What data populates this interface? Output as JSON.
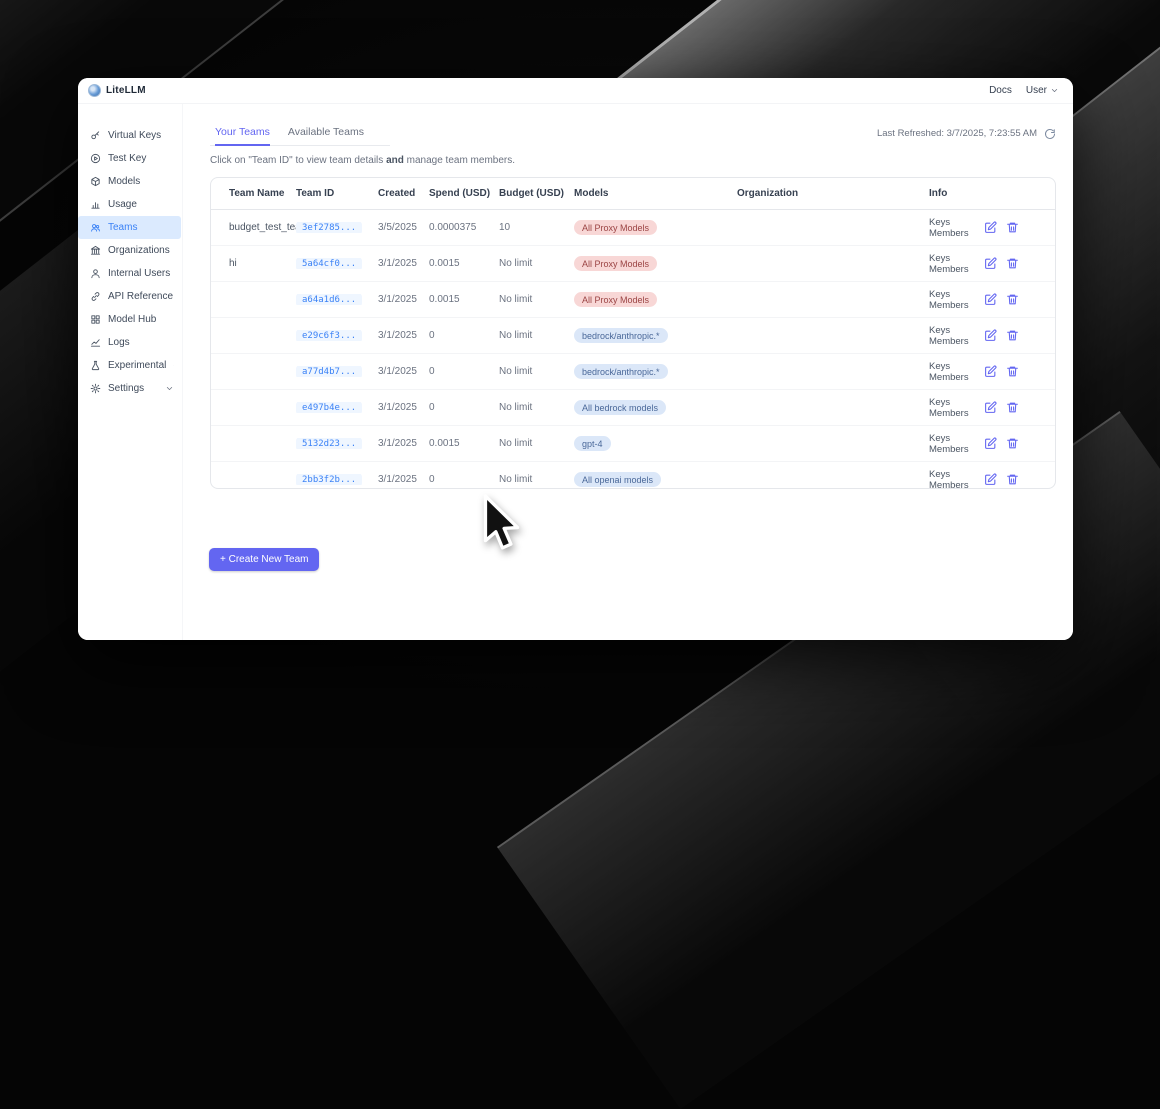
{
  "header": {
    "brand": "LiteLLM",
    "docs_label": "Docs",
    "user_label": "User"
  },
  "sidebar": {
    "items": [
      {
        "label": "Virtual Keys",
        "icon": "key-icon",
        "active": false,
        "chevron": false
      },
      {
        "label": "Test Key",
        "icon": "play-circle-icon",
        "active": false,
        "chevron": false
      },
      {
        "label": "Models",
        "icon": "cube-icon",
        "active": false,
        "chevron": false
      },
      {
        "label": "Usage",
        "icon": "bar-chart-icon",
        "active": false,
        "chevron": false
      },
      {
        "label": "Teams",
        "icon": "users-icon",
        "active": true,
        "chevron": false
      },
      {
        "label": "Organizations",
        "icon": "bank-icon",
        "active": false,
        "chevron": false
      },
      {
        "label": "Internal Users",
        "icon": "user-icon",
        "active": false,
        "chevron": false
      },
      {
        "label": "API Reference",
        "icon": "link-icon",
        "active": false,
        "chevron": false
      },
      {
        "label": "Model Hub",
        "icon": "grid-icon",
        "active": false,
        "chevron": false
      },
      {
        "label": "Logs",
        "icon": "line-chart-icon",
        "active": false,
        "chevron": false
      },
      {
        "label": "Experimental",
        "icon": "flask-icon",
        "active": false,
        "chevron": true
      },
      {
        "label": "Settings",
        "icon": "gear-icon",
        "active": false,
        "chevron": true
      }
    ]
  },
  "main": {
    "tabs": [
      {
        "label": "Your Teams",
        "active": true
      },
      {
        "label": "Available Teams",
        "active": false
      }
    ],
    "last_refreshed": "Last Refreshed: 3/7/2025, 7:23:55 AM",
    "description": {
      "pre": "Click on \"Team ID\" to view team details ",
      "bold": "and",
      "post": " manage team members."
    },
    "table": {
      "columns": [
        "Team Name",
        "Team ID",
        "Created",
        "Spend (USD)",
        "Budget (USD)",
        "Models",
        "Organization",
        "Info"
      ],
      "info_labels": {
        "keys": "Keys",
        "members": "Members"
      },
      "rows": [
        {
          "team_name": "budget_test_team",
          "team_id": "3ef2785...",
          "created": "3/5/2025",
          "spend": "0.0000375",
          "budget": "10",
          "model": "All Proxy Models",
          "model_color": "red"
        },
        {
          "team_name": "hi",
          "team_id": "5a64cf0...",
          "created": "3/1/2025",
          "spend": "0.0015",
          "budget": "No limit",
          "model": "All Proxy Models",
          "model_color": "red"
        },
        {
          "team_name": "",
          "team_id": "a64a1d6...",
          "created": "3/1/2025",
          "spend": "0.0015",
          "budget": "No limit",
          "model": "All Proxy Models",
          "model_color": "red"
        },
        {
          "team_name": "",
          "team_id": "e29c6f3...",
          "created": "3/1/2025",
          "spend": "0",
          "budget": "No limit",
          "model": "bedrock/anthropic.*",
          "model_color": "blue"
        },
        {
          "team_name": "",
          "team_id": "a77d4b7...",
          "created": "3/1/2025",
          "spend": "0",
          "budget": "No limit",
          "model": "bedrock/anthropic.*",
          "model_color": "blue"
        },
        {
          "team_name": "",
          "team_id": "e497b4e...",
          "created": "3/1/2025",
          "spend": "0",
          "budget": "No limit",
          "model": "All bedrock models",
          "model_color": "blue"
        },
        {
          "team_name": "",
          "team_id": "5132d23...",
          "created": "3/1/2025",
          "spend": "0.0015",
          "budget": "No limit",
          "model": "gpt-4",
          "model_color": "blue"
        },
        {
          "team_name": "",
          "team_id": "2bb3f2b...",
          "created": "3/1/2025",
          "spend": "0",
          "budget": "No limit",
          "model": "All openai models",
          "model_color": "blue"
        }
      ]
    },
    "create_button_label": "+ Create New Team"
  },
  "colors": {
    "accent": "#6366f1",
    "active_nav_bg": "#dbeafe",
    "active_nav_text": "#3b82f6",
    "team_id_bg": "#eff6ff",
    "team_id_text": "#3b82f6",
    "badge_red_bg": "#f8d7d6",
    "badge_red_text": "#9b4444",
    "badge_blue_bg": "#dbe7f8",
    "badge_blue_text": "#4a6899"
  }
}
